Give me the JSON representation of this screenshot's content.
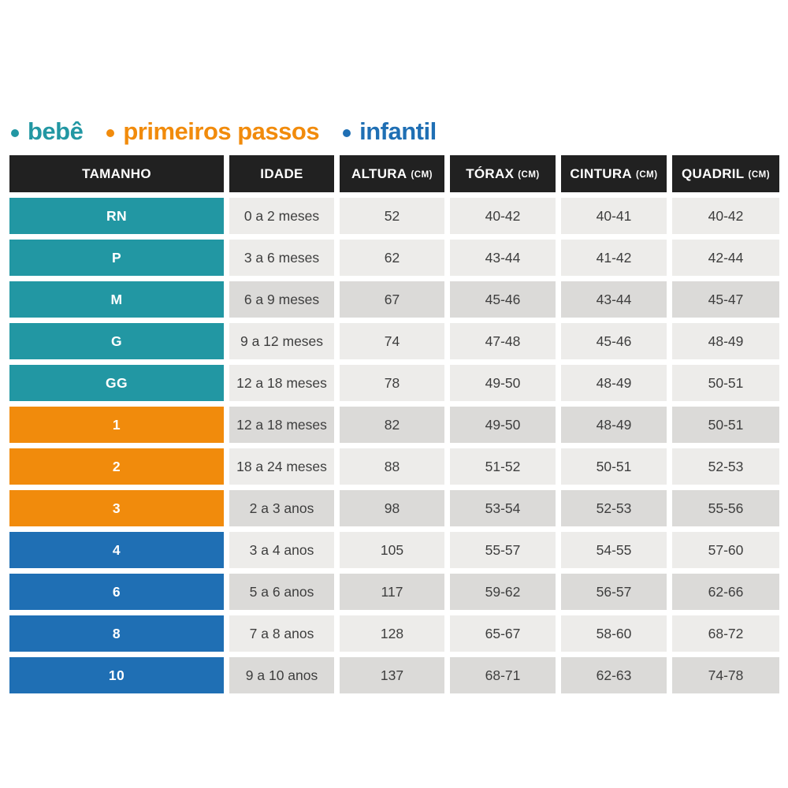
{
  "legend": {
    "items": [
      {
        "key": "bebe",
        "label": "bebê",
        "color": "#2297A3"
      },
      {
        "key": "primeiros-passos",
        "label": "primeiros passos",
        "color": "#F18B0C"
      },
      {
        "key": "infantil",
        "label": "infantil",
        "color": "#1F6FB4"
      }
    ]
  },
  "table": {
    "columns": [
      {
        "key": "tamanho",
        "label": "TAMANHO",
        "unit": ""
      },
      {
        "key": "idade",
        "label": "IDADE",
        "unit": ""
      },
      {
        "key": "altura",
        "label": "ALTURA",
        "unit": "(CM)"
      },
      {
        "key": "torax",
        "label": "TÓRAX",
        "unit": "(CM)"
      },
      {
        "key": "cintura",
        "label": "CINTURA",
        "unit": "(CM)"
      },
      {
        "key": "quadril",
        "label": "QUADRIL",
        "unit": "(CM)"
      }
    ],
    "style": {
      "header_bg": "#212121",
      "header_text": "#FFFFFF",
      "row_bg_light": "#EDECEA",
      "row_bg_dark": "#DBDAD8",
      "data_text": "#3E3E3E",
      "group_colors": {
        "bebê": "#2297A3",
        "primeiros passos": "#F18B0C",
        "infantil": "#1F6FB4"
      }
    }
  },
  "chart_data": {
    "type": "table",
    "title": "",
    "legend": [
      "bebê",
      "primeiros passos",
      "infantil"
    ],
    "columns": [
      "TAMANHO",
      "IDADE",
      "ALTURA (CM)",
      "TÓRAX (CM)",
      "CINTURA (CM)",
      "QUADRIL (CM)"
    ],
    "groups": {
      "bebê": [
        "RN",
        "P",
        "M",
        "G",
        "GG"
      ],
      "primeiros passos": [
        "1",
        "2",
        "3"
      ],
      "infantil": [
        "4",
        "6",
        "8",
        "10"
      ]
    },
    "rows": [
      {
        "tamanho": "RN",
        "grupo": "bebê",
        "idade": "0 a 2 meses",
        "altura_cm": "52",
        "torax_cm": "40-42",
        "cintura_cm": "40-41",
        "quadril_cm": "40-42",
        "shaded": false
      },
      {
        "tamanho": "P",
        "grupo": "bebê",
        "idade": "3 a 6 meses",
        "altura_cm": "62",
        "torax_cm": "43-44",
        "cintura_cm": "41-42",
        "quadril_cm": "42-44",
        "shaded": false
      },
      {
        "tamanho": "M",
        "grupo": "bebê",
        "idade": "6 a 9 meses",
        "altura_cm": "67",
        "torax_cm": "45-46",
        "cintura_cm": "43-44",
        "quadril_cm": "45-47",
        "shaded": true
      },
      {
        "tamanho": "G",
        "grupo": "bebê",
        "idade": "9 a 12 meses",
        "altura_cm": "74",
        "torax_cm": "47-48",
        "cintura_cm": "45-46",
        "quadril_cm": "48-49",
        "shaded": false
      },
      {
        "tamanho": "GG",
        "grupo": "bebê",
        "idade": "12 a 18 meses",
        "altura_cm": "78",
        "torax_cm": "49-50",
        "cintura_cm": "48-49",
        "quadril_cm": "50-51",
        "shaded": false
      },
      {
        "tamanho": "1",
        "grupo": "primeiros passos",
        "idade": "12 a 18 meses",
        "altura_cm": "82",
        "torax_cm": "49-50",
        "cintura_cm": "48-49",
        "quadril_cm": "50-51",
        "shaded": true
      },
      {
        "tamanho": "2",
        "grupo": "primeiros passos",
        "idade": "18 a 24 meses",
        "altura_cm": "88",
        "torax_cm": "51-52",
        "cintura_cm": "50-51",
        "quadril_cm": "52-53",
        "shaded": false
      },
      {
        "tamanho": "3",
        "grupo": "primeiros passos",
        "idade": "2 a 3 anos",
        "altura_cm": "98",
        "torax_cm": "53-54",
        "cintura_cm": "52-53",
        "quadril_cm": "55-56",
        "shaded": true
      },
      {
        "tamanho": "4",
        "grupo": "infantil",
        "idade": "3 a 4 anos",
        "altura_cm": "105",
        "torax_cm": "55-57",
        "cintura_cm": "54-55",
        "quadril_cm": "57-60",
        "shaded": false
      },
      {
        "tamanho": "6",
        "grupo": "infantil",
        "idade": "5 a 6 anos",
        "altura_cm": "117",
        "torax_cm": "59-62",
        "cintura_cm": "56-57",
        "quadril_cm": "62-66",
        "shaded": true
      },
      {
        "tamanho": "8",
        "grupo": "infantil",
        "idade": "7 a 8 anos",
        "altura_cm": "128",
        "torax_cm": "65-67",
        "cintura_cm": "58-60",
        "quadril_cm": "68-72",
        "shaded": false
      },
      {
        "tamanho": "10",
        "grupo": "infantil",
        "idade": "9 a 10 anos",
        "altura_cm": "137",
        "torax_cm": "68-71",
        "cintura_cm": "62-63",
        "quadril_cm": "74-78",
        "shaded": true
      }
    ]
  }
}
